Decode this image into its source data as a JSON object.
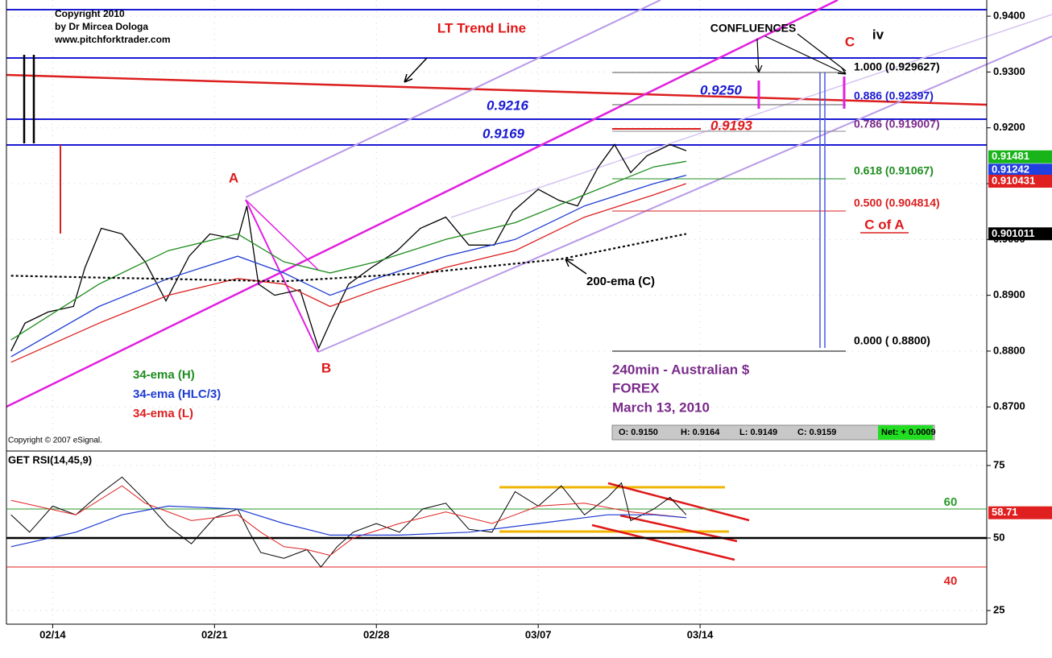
{
  "notes": {
    "copyright": [
      "Copyright 2010",
      "by Dr Mircea Dologa",
      "www.pitchforktrader.com"
    ],
    "esignal": "Copyright © 2007 eSignal.",
    "trend_line": "LT Trend Line",
    "confluences": "CONFLUENCES",
    "wave_c": "C",
    "wave_iv": "iv",
    "point_a": "A",
    "point_b": "B",
    "c_of_a": "C of A",
    "level_9250": "0.9250",
    "level_9216": "0.9216",
    "level_9169": "0.9169",
    "level_9193": "0.9193",
    "fib": [
      "1.000 (0.929627)",
      "0.886 (0.92397)",
      "0.786 (0.919007)",
      "0.618 (0.91067)",
      "0.500 (0.904814)",
      "0.000 ( 0.8800)"
    ],
    "info": [
      "240min - Australian $",
      "FOREX",
      "March 13, 2010"
    ],
    "ohlc": [
      "O: 0.9150",
      "H: 0.9164",
      "L: 0.9149",
      "C: 0.9159",
      "Net: + 0.0009"
    ]
  },
  "chart_data": [
    {
      "type": "line",
      "xlim": [
        -2,
        40.4
      ],
      "ylim": [
        0.8621,
        0.9429
      ],
      "yticks": [
        {
          "value": 0.87,
          "label": "0.8700"
        },
        {
          "value": 0.88,
          "label": "0.8800"
        },
        {
          "value": 0.89,
          "label": "0.8900"
        },
        {
          "value": 0.9,
          "label": "0.9000"
        },
        {
          "value": 0.91,
          "label": "0.9100"
        },
        {
          "value": 0.92,
          "label": "0.9200"
        },
        {
          "value": 0.93,
          "label": "0.9300"
        },
        {
          "value": 0.94,
          "label": "0.9400"
        }
      ],
      "grid": true,
      "series": [
        {
          "color": "#000000",
          "width": 1.3,
          "x": [
            -1.8,
            -1.2,
            -0.2,
            0.9,
            1.4,
            2.1,
            3.0,
            4.0,
            4.9,
            5.9,
            6.8,
            8.0,
            8.4,
            8.9,
            9.6,
            10.7,
            11.5,
            12.1,
            12.8,
            13.8,
            14.9,
            15.9,
            17.0,
            18.0,
            19.1,
            19.9,
            21.0,
            21.9,
            22.7,
            23.6,
            24.3,
            25.0,
            25.7,
            26.7,
            27.4
          ],
          "values": [
            0.88,
            0.885,
            0.887,
            0.888,
            0.895,
            0.902,
            0.901,
            0.896,
            0.889,
            0.897,
            0.901,
            0.9,
            0.906,
            0.892,
            0.89,
            0.891,
            0.8805,
            0.886,
            0.892,
            0.895,
            0.898,
            0.902,
            0.904,
            0.899,
            0.899,
            0.905,
            0.909,
            0.907,
            0.906,
            0.913,
            0.917,
            0.912,
            0.915,
            0.917,
            0.9159
          ]
        },
        {
          "name": "34-ema (H)",
          "color": "#1e8c1e",
          "width": 1.3,
          "x": [
            -1.8,
            2,
            5,
            8,
            10,
            12,
            14,
            17,
            20,
            23,
            26,
            27.4
          ],
          "values": [
            0.882,
            0.892,
            0.898,
            0.901,
            0.896,
            0.894,
            0.896,
            0.9,
            0.903,
            0.908,
            0.913,
            0.914
          ]
        },
        {
          "name": "34-ema (HLC/3)",
          "color": "#1e3cd2",
          "width": 1.3,
          "x": [
            -1.8,
            2,
            5,
            8,
            10,
            12,
            14,
            17,
            20,
            23,
            26,
            27.4
          ],
          "values": [
            0.879,
            0.888,
            0.893,
            0.897,
            0.894,
            0.89,
            0.893,
            0.897,
            0.9,
            0.906,
            0.91,
            0.9115
          ]
        },
        {
          "name": "34-ema (L)",
          "color": "#dc2020",
          "width": 1.3,
          "x": [
            -1.8,
            2,
            5,
            8,
            10,
            12,
            14,
            17,
            20,
            23,
            26,
            27.4
          ],
          "values": [
            0.878,
            0.885,
            0.89,
            0.893,
            0.892,
            0.888,
            0.891,
            0.895,
            0.898,
            0.904,
            0.908,
            0.91
          ]
        },
        {
          "name": "200-ema (C)",
          "color": "#000000",
          "width": 2.2,
          "dotted": true,
          "x": [
            -1.8,
            4,
            10,
            16,
            22,
            27.4
          ],
          "values": [
            0.8935,
            0.893,
            0.8925,
            0.894,
            0.8965,
            0.901
          ]
        }
      ],
      "price_labels": [
        {
          "value": 0.91481,
          "color": "#19b419"
        },
        {
          "value": 0.91242,
          "color": "#2040e0"
        },
        {
          "value": 0.910431,
          "color": "#e02020"
        },
        {
          "value": 0.901011,
          "color": "#000000"
        }
      ]
    },
    {
      "type": "line",
      "title": "GET RSI(14,45,9)",
      "xlim": [
        -2,
        40.4
      ],
      "xticks": [
        {
          "value": 0,
          "label": "02/14"
        },
        {
          "value": 7,
          "label": "02/21"
        },
        {
          "value": 14,
          "label": "02/28"
        },
        {
          "value": 21,
          "label": "03/07"
        },
        {
          "value": 28,
          "label": "03/14"
        }
      ],
      "ylim": [
        20.3,
        80
      ],
      "yticks": [
        25,
        50,
        75
      ],
      "grid": true,
      "levels": [
        {
          "value": 60,
          "color": "#2a9a2a",
          "labeled": true
        },
        {
          "value": 50,
          "color": "#000000",
          "labeled": false
        },
        {
          "value": 40,
          "color": "#e02020",
          "labeled": true
        }
      ],
      "series": [
        {
          "color": "#000000",
          "width": 1,
          "x": [
            -1.8,
            -1,
            0,
            1,
            2,
            3,
            4,
            5,
            6,
            7,
            8,
            8.5,
            9,
            10,
            11,
            11.6,
            12.3,
            13,
            14,
            15,
            16,
            17,
            18,
            19,
            20,
            21,
            22,
            23,
            24,
            24.6,
            25,
            26,
            26.7,
            27.4
          ],
          "values": [
            58,
            52,
            61,
            58,
            65,
            71,
            63,
            54,
            48,
            57,
            60,
            52,
            45,
            43,
            46,
            40,
            47,
            52,
            55,
            52,
            60,
            62,
            53,
            52,
            66,
            61,
            68,
            58,
            64,
            69,
            56,
            60,
            64,
            58
          ]
        },
        {
          "color": "#e02020",
          "width": 1,
          "x": [
            -1.8,
            1,
            3,
            4,
            6,
            8,
            9,
            10,
            11,
            12,
            13,
            15,
            17,
            19,
            21,
            23,
            25,
            27.4
          ],
          "values": [
            63,
            58,
            68,
            62,
            56,
            58,
            52,
            47,
            46,
            44,
            50,
            55,
            59,
            55,
            61,
            62,
            59,
            57
          ]
        },
        {
          "color": "#1e3cd2",
          "width": 1.2,
          "x": [
            -1.8,
            1,
            3,
            5,
            8,
            10,
            12,
            15,
            18,
            21,
            24,
            26,
            27.4
          ],
          "values": [
            47,
            52,
            58,
            61,
            60,
            55,
            51,
            51,
            52,
            55,
            58,
            58,
            57
          ]
        }
      ],
      "price_labels": [
        {
          "value": 58.71,
          "color": "#e02020"
        }
      ]
    }
  ]
}
